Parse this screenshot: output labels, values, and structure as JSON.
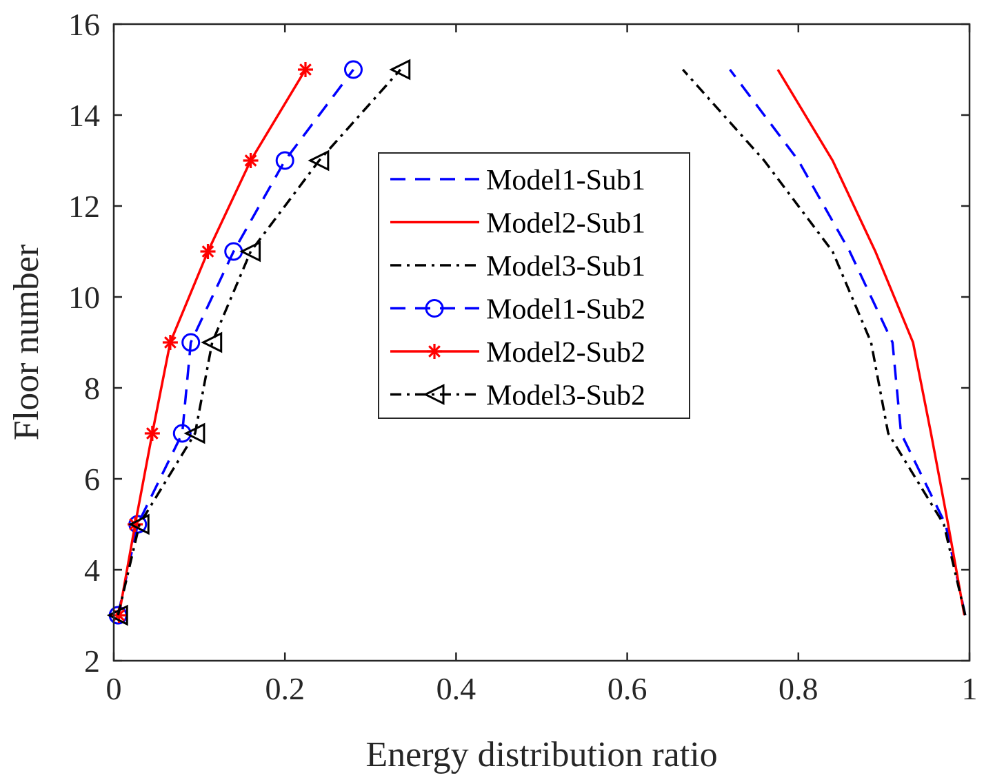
{
  "chart_data": {
    "type": "line",
    "title": "",
    "xlabel": "Energy distribution ratio",
    "ylabel": "Floor number",
    "xlim": [
      0,
      1
    ],
    "ylim": [
      2,
      16
    ],
    "xticks": [
      0,
      0.2,
      0.4,
      0.6,
      0.8,
      1
    ],
    "xtick_labels": [
      "0",
      "0.2",
      "0.4",
      "0.6",
      "0.8",
      "1"
    ],
    "yticks": [
      2,
      4,
      6,
      8,
      10,
      12,
      14,
      16
    ],
    "ytick_labels": [
      "2",
      "4",
      "6",
      "8",
      "10",
      "12",
      "14",
      "16"
    ],
    "grid": false,
    "legend_position": "upper-center",
    "series": [
      {
        "name": "Model1-Sub1",
        "color": "#0000ff",
        "line": "dashed",
        "marker": "none",
        "x": [
          0.995,
          0.972,
          0.92,
          0.91,
          0.86,
          0.8,
          0.72
        ],
        "y": [
          3,
          5,
          7,
          9,
          11,
          13,
          15
        ]
      },
      {
        "name": "Model2-Sub1",
        "color": "#ff0000",
        "line": "solid",
        "marker": "none",
        "x": [
          0.994,
          0.975,
          0.955,
          0.934,
          0.89,
          0.84,
          0.776
        ],
        "y": [
          3,
          5,
          7,
          9,
          11,
          13,
          15
        ]
      },
      {
        "name": "Model3-Sub1",
        "color": "#000000",
        "line": "dashdot",
        "marker": "none",
        "x": [
          0.995,
          0.97,
          0.905,
          0.885,
          0.84,
          0.76,
          0.665
        ],
        "y": [
          3,
          5,
          7,
          9,
          11,
          13,
          15
        ]
      },
      {
        "name": "Model1-Sub2",
        "color": "#0000ff",
        "line": "dashed",
        "marker": "circle",
        "x": [
          0.005,
          0.028,
          0.08,
          0.09,
          0.14,
          0.2,
          0.28
        ],
        "y": [
          3,
          5,
          7,
          9,
          11,
          13,
          15
        ]
      },
      {
        "name": "Model2-Sub2",
        "color": "#ff0000",
        "line": "solid",
        "marker": "asterisk",
        "x": [
          0.006,
          0.025,
          0.045,
          0.066,
          0.11,
          0.16,
          0.224
        ],
        "y": [
          3,
          5,
          7,
          9,
          11,
          13,
          15
        ]
      },
      {
        "name": "Model3-Sub2",
        "color": "#000000",
        "line": "dashdot",
        "marker": "triangle-left",
        "x": [
          0.005,
          0.03,
          0.095,
          0.115,
          0.16,
          0.24,
          0.335
        ],
        "y": [
          3,
          5,
          7,
          9,
          11,
          13,
          15
        ]
      }
    ]
  }
}
